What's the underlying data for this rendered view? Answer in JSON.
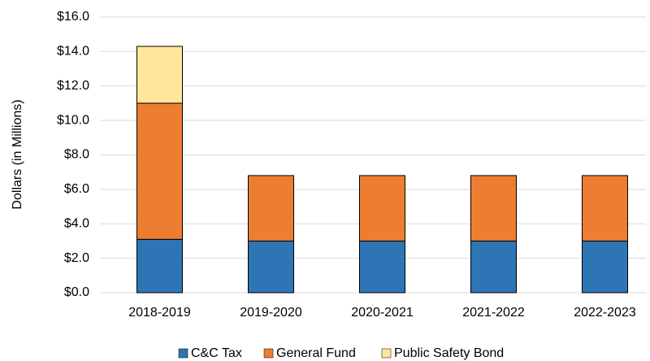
{
  "chart_data": {
    "type": "stacked_bar",
    "y_label": "Dollars (in Millions)",
    "categories": [
      "2018-2019",
      "2019-2020",
      "2020-2021",
      "2021-2022",
      "2022-2023"
    ],
    "series": [
      {
        "name": "C&C Tax",
        "color": "#2e75b6",
        "values": [
          3.1,
          3.0,
          3.0,
          3.0,
          3.0
        ]
      },
      {
        "name": "General Fund",
        "color": "#ed7d31",
        "values": [
          7.9,
          3.8,
          3.8,
          3.8,
          3.8
        ]
      },
      {
        "name": "Public Safety Bond",
        "color": "#ffe699",
        "values": [
          3.3,
          0,
          0,
          0,
          0
        ]
      }
    ],
    "ylim": [
      0,
      16
    ],
    "yticks": [
      {
        "value": 0,
        "label": "$0.0"
      },
      {
        "value": 2,
        "label": "$2.0"
      },
      {
        "value": 4,
        "label": "$4.0"
      },
      {
        "value": 6,
        "label": "$6.0"
      },
      {
        "value": 8,
        "label": "$8.0"
      },
      {
        "value": 10,
        "label": "$10.0"
      },
      {
        "value": 12,
        "label": "$12.0"
      },
      {
        "value": 14,
        "label": "$14.0"
      },
      {
        "value": 16,
        "label": "$16.0"
      }
    ],
    "grid": true,
    "legend": "bottom"
  }
}
